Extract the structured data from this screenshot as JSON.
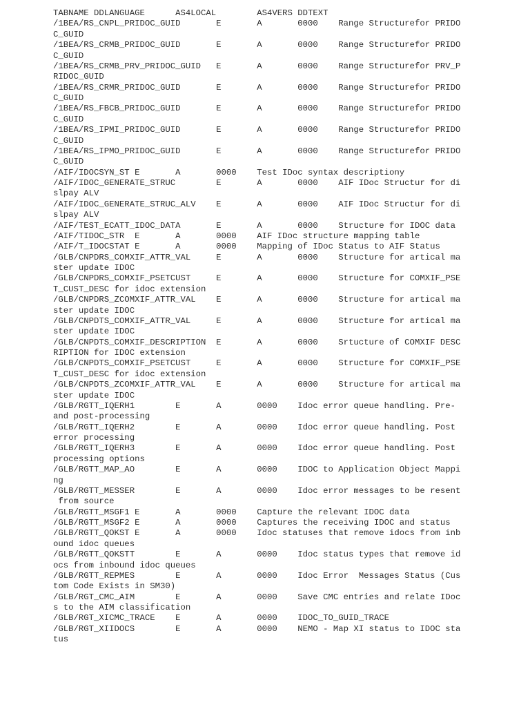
{
  "document": {
    "lines": [
      "TABNAME DDLANGUAGE\tAS4LOCAL\tAS4VERS\tDDTEXT",
      "/1BEA/RS_CNPL_PRIDOC_GUID\tE\tA\t0000\tRange Structurefor PRIDO",
      "C_GUID",
      "/1BEA/RS_CRMB_PRIDOC_GUID\tE\tA\t0000\tRange Structurefor PRIDO",
      "C_GUID",
      "/1BEA/RS_CRMB_PRV_PRIDOC_GUID\tE\tA\t0000\tRange Structurefor PRV_P",
      "RIDOC_GUID",
      "/1BEA/RS_CRMR_PRIDOC_GUID\tE\tA\t0000\tRange Structurefor PRIDO",
      "C_GUID",
      "/1BEA/RS_FBCB_PRIDOC_GUID\tE\tA\t0000\tRange Structurefor PRIDO",
      "C_GUID",
      "/1BEA/RS_IPMI_PRIDOC_GUID\tE\tA\t0000\tRange Structurefor PRIDO",
      "C_GUID",
      "/1BEA/RS_IPMO_PRIDOC_GUID\tE\tA\t0000\tRange Structurefor PRIDO",
      "C_GUID",
      "/AIF/IDOCSYN_ST E\tA\t0000\tTest IDoc syntax descriptiony",
      "/AIF/IDOC_GENERATE_STRUC\tE\tA\t0000\tAIF IDoc Structur for di",
      "slpay ALV",
      "/AIF/IDOC_GENERATE_STRUC_ALV\tE\tA\t0000\tAIF IDoc Structur for di",
      "slpay ALV",
      "/AIF/TEST_ECATT_IDOC_DATA\tE\tA\t0000\tStructure for IDOC data",
      "/AIF/TIDOC_STR\tE\tA\t0000\tAIF IDoc structure mapping table",
      "/AIF/T_IDOCSTAT E\tA\t0000\tMapping of IDoc Status to AIF Status",
      "/GLB/CNPDRS_COMXIF_ATTR_VAL\tE\tA\t0000\tStructure for artical ma",
      "ster update IDOC",
      "/GLB/CNPDRS_COMXIF_PSETCUST\tE\tA\t0000\tStructure for COMXIF_PSE",
      "T_CUST_DESC for idoc extension",
      "/GLB/CNPDRS_ZCOMXIF_ATTR_VAL\tE\tA\t0000\tStructure for artical ma",
      "ster update IDOC",
      "/GLB/CNPDTS_COMXIF_ATTR_VAL\tE\tA\t0000\tStructure for artical ma",
      "ster update IDOC",
      "/GLB/CNPDTS_COMXIF_DESCRIPTION\tE\tA\t0000\tSrtucture of COMXIF DESC",
      "RIPTION for IDOC extension",
      "/GLB/CNPDTS_COMXIF_PSETCUST\tE\tA\t0000\tStructure for COMXIF_PSE",
      "T_CUST_DESC for idoc extension",
      "/GLB/CNPDTS_ZCOMXIF_ATTR_VAL\tE\tA\t0000\tStructure for artical ma",
      "ster update IDOC",
      "/GLB/RGTT_IQERH1\tE\tA\t0000\tIdoc error queue handling. Pre-",
      "and post-processing",
      "/GLB/RGTT_IQERH2\tE\tA\t0000\tIdoc error queue handling. Post",
      "error processing",
      "/GLB/RGTT_IQERH3\tE\tA\t0000\tIdoc error queue handling. Post",
      "processing options",
      "/GLB/RGTT_MAP_AO\tE\tA\t0000\tIDOC to Application Object Mappi",
      "ng",
      "/GLB/RGTT_MESSER\tE\tA\t0000\tIdoc error messages to be resent",
      " from source",
      "/GLB/RGTT_MSGF1 E\tA\t0000\tCapture the relevant IDOC data",
      "/GLB/RGTT_MSGF2 E\tA\t0000\tCaptures the receiving IDOC and status",
      "/GLB/RGTT_QOKST E\tA\t0000\tIdoc statuses that remove idocs from inb",
      "ound idoc queues",
      "/GLB/RGTT_QOKSTT\tE\tA\t0000\tIdoc status types that remove id",
      "ocs from inbound idoc queues",
      "/GLB/RGTT_REPMES\tE\tA\t0000\tIdoc Error  Messages Status (Cus",
      "tom Code Exists in SM30)",
      "/GLB/RGT_CMC_AIM\tE\tA\t0000\tSave CMC entries and relate IDoc",
      "s to the AIM classification",
      "/GLB/RGT_XICMC_TRACE\tE\tA\t0000\tIDOC_TO_GUID_TRACE",
      "/GLB/RGT_XIIDOCS\tE\tA\t0000\tNEMO - Map XI status to IDOC sta",
      "tus"
    ]
  }
}
